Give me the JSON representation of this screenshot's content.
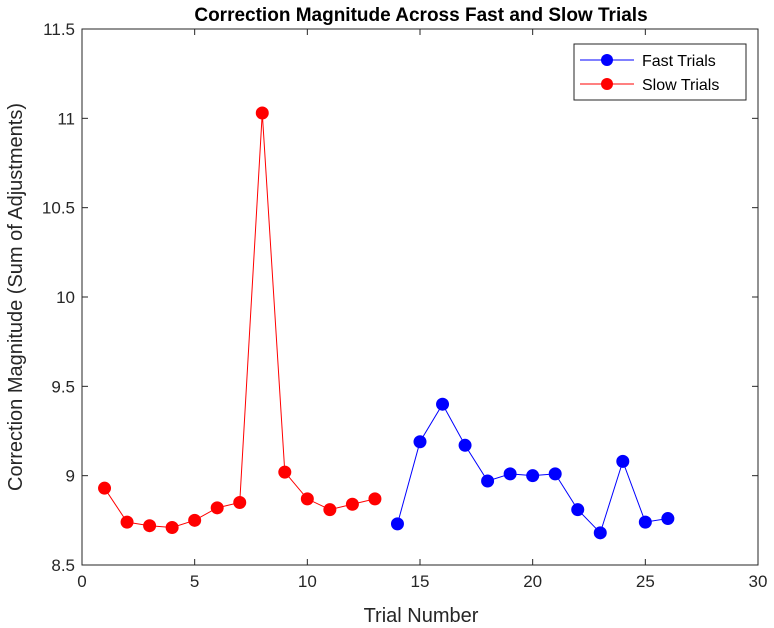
{
  "chart_data": {
    "type": "line",
    "title": "Correction Magnitude Across Fast and Slow Trials",
    "xlabel": "Trial Number",
    "ylabel": "Correction Magnitude (Sum of Adjustments)",
    "xlim": [
      0,
      30
    ],
    "ylim": [
      8.5,
      11.5
    ],
    "xticks": [
      0,
      5,
      10,
      15,
      20,
      25,
      30
    ],
    "yticks": [
      8.5,
      9,
      9.5,
      10,
      10.5,
      11,
      11.5
    ],
    "grid": false,
    "legend_position": "top-right",
    "series": [
      {
        "name": "Fast Trials",
        "color": "#0000ff",
        "x": [
          14,
          15,
          16,
          17,
          18,
          19,
          20,
          21,
          22,
          23,
          24,
          25,
          26
        ],
        "y": [
          8.73,
          9.19,
          9.4,
          9.17,
          8.97,
          9.01,
          9.0,
          9.01,
          8.81,
          8.68,
          9.08,
          8.74,
          8.76
        ]
      },
      {
        "name": "Slow Trials",
        "color": "#ff0000",
        "x": [
          1,
          2,
          3,
          4,
          5,
          6,
          7,
          8,
          9,
          10,
          11,
          12,
          13
        ],
        "y": [
          8.93,
          8.74,
          8.72,
          8.71,
          8.75,
          8.82,
          8.85,
          11.03,
          9.02,
          8.87,
          8.81,
          8.84,
          8.87
        ]
      }
    ]
  }
}
